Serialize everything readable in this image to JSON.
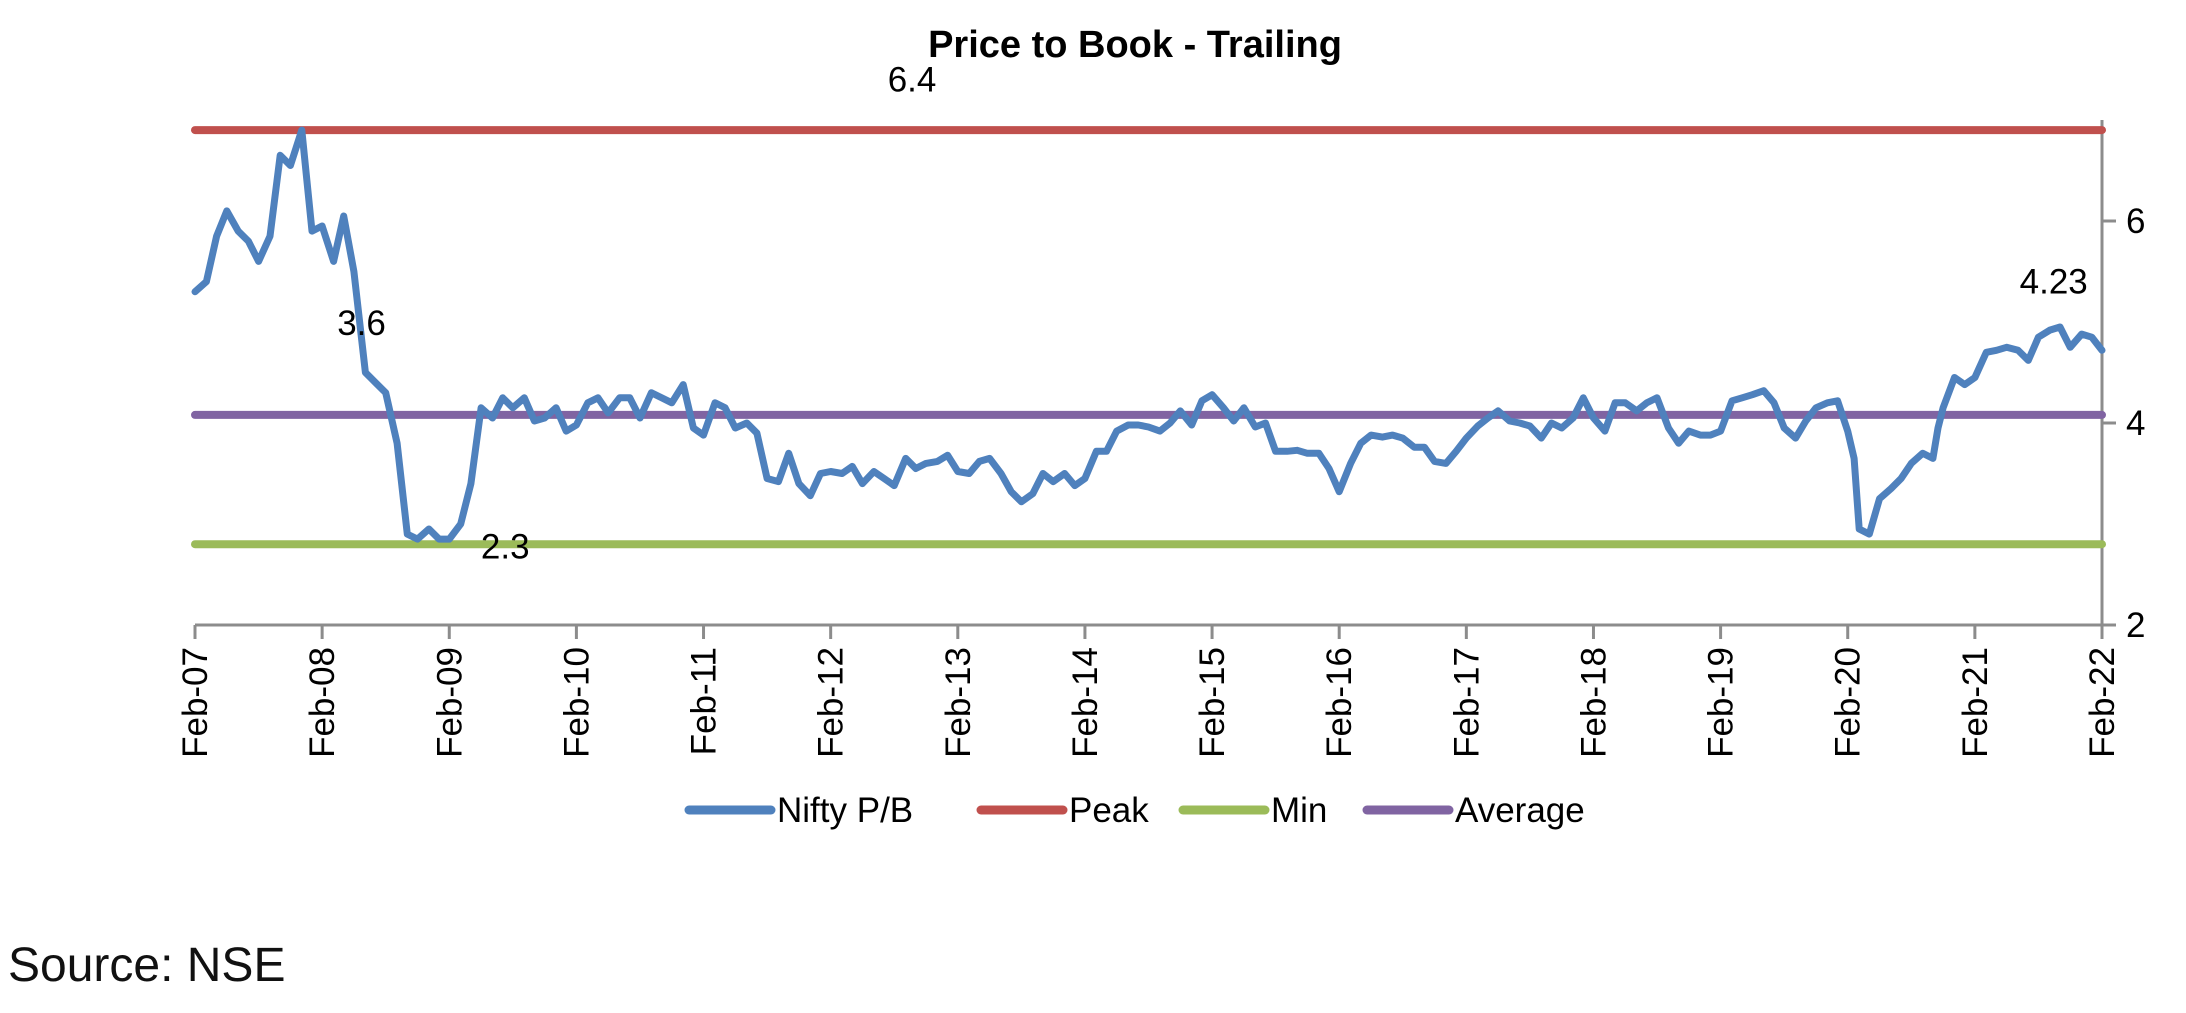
{
  "chart_data": {
    "type": "line",
    "title": "Price to Book - Trailing",
    "x_ticks": [
      "Feb-07",
      "Feb-08",
      "Feb-09",
      "Feb-10",
      "Feb-11",
      "Feb-12",
      "Feb-13",
      "Feb-14",
      "Feb-15",
      "Feb-16",
      "Feb-17",
      "Feb-18",
      "Feb-19",
      "Feb-20",
      "Feb-21",
      "Feb-22"
    ],
    "y_ticks": [
      2,
      4,
      6
    ],
    "ylim": [
      2,
      7
    ],
    "xlim": [
      2007.08,
      2022.08
    ],
    "y_axis_side": "right",
    "legend_position": "bottom",
    "series": [
      {
        "name": "Nifty P/B",
        "color": "#4F81BD",
        "x": [
          2007.08,
          2007.17,
          2007.25,
          2007.33,
          2007.42,
          2007.5,
          2007.58,
          2007.67,
          2007.75,
          2007.83,
          2007.92,
          2008.0,
          2008.08,
          2008.17,
          2008.25,
          2008.33,
          2008.42,
          2008.5,
          2008.58,
          2008.67,
          2008.75,
          2008.83,
          2008.92,
          2009.0,
          2009.08,
          2009.17,
          2009.25,
          2009.33,
          2009.42,
          2009.5,
          2009.58,
          2009.67,
          2009.75,
          2009.83,
          2009.92,
          2010.0,
          2010.08,
          2010.17,
          2010.25,
          2010.33,
          2010.42,
          2010.5,
          2010.58,
          2010.67,
          2010.75,
          2010.83,
          2010.92,
          2011.0,
          2011.08,
          2011.17,
          2011.25,
          2011.33,
          2011.42,
          2011.5,
          2011.58,
          2011.67,
          2011.75,
          2011.83,
          2011.92,
          2012.0,
          2012.08,
          2012.17,
          2012.25,
          2012.33,
          2012.42,
          2012.5,
          2012.58,
          2012.67,
          2012.75,
          2012.83,
          2012.92,
          2013.0,
          2013.08,
          2013.17,
          2013.25,
          2013.33,
          2013.42,
          2013.5,
          2013.58,
          2013.67,
          2013.75,
          2013.83,
          2013.92,
          2014.0,
          2014.08,
          2014.17,
          2014.25,
          2014.33,
          2014.42,
          2014.5,
          2014.58,
          2014.67,
          2014.75,
          2014.83,
          2014.92,
          2015.0,
          2015.08,
          2015.17,
          2015.25,
          2015.33,
          2015.42,
          2015.5,
          2015.58,
          2015.67,
          2015.75,
          2015.83,
          2015.92,
          2016.0,
          2016.08,
          2016.17,
          2016.25,
          2016.33,
          2016.42,
          2016.5,
          2016.58,
          2016.67,
          2016.75,
          2016.83,
          2016.92,
          2017.0,
          2017.08,
          2017.17,
          2017.25,
          2017.33,
          2017.42,
          2017.5,
          2017.58,
          2017.67,
          2017.75,
          2017.83,
          2017.92,
          2018.0,
          2018.08,
          2018.17,
          2018.25,
          2018.33,
          2018.42,
          2018.5,
          2018.58,
          2018.67,
          2018.75,
          2018.83,
          2018.92,
          2019.0,
          2019.08,
          2019.17,
          2019.25,
          2019.33,
          2019.42,
          2019.5,
          2019.58,
          2019.67,
          2019.75,
          2019.83,
          2019.92,
          2020.0,
          2020.08,
          2020.13,
          2020.17,
          2020.25,
          2020.33,
          2020.42,
          2020.5,
          2020.58,
          2020.67,
          2020.75,
          2020.79,
          2020.83,
          2020.92,
          2021.0,
          2021.08,
          2021.17,
          2021.25,
          2021.33,
          2021.42,
          2021.5,
          2021.58,
          2021.67,
          2021.75,
          2021.83,
          2021.92,
          2022.0,
          2022.08
        ],
        "y": [
          5.3,
          5.4,
          5.85,
          6.1,
          5.9,
          5.8,
          5.6,
          5.85,
          6.65,
          6.55,
          6.9,
          5.9,
          5.95,
          5.6,
          6.05,
          5.5,
          4.5,
          4.4,
          4.3,
          3.8,
          2.9,
          2.85,
          2.95,
          2.85,
          2.85,
          3.0,
          3.4,
          4.15,
          4.05,
          4.25,
          4.15,
          4.25,
          4.02,
          4.05,
          4.15,
          3.92,
          3.98,
          4.2,
          4.25,
          4.1,
          4.25,
          4.25,
          4.05,
          4.3,
          4.25,
          4.2,
          4.38,
          3.95,
          3.88,
          4.2,
          4.15,
          3.95,
          4.0,
          3.9,
          3.45,
          3.42,
          3.7,
          3.4,
          3.28,
          3.5,
          3.52,
          3.5,
          3.57,
          3.4,
          3.52,
          3.45,
          3.38,
          3.65,
          3.55,
          3.6,
          3.62,
          3.68,
          3.52,
          3.5,
          3.62,
          3.65,
          3.5,
          3.32,
          3.22,
          3.3,
          3.5,
          3.42,
          3.5,
          3.38,
          3.45,
          3.72,
          3.72,
          3.92,
          3.98,
          3.98,
          3.96,
          3.92,
          4.0,
          4.12,
          3.98,
          4.22,
          4.28,
          4.15,
          4.02,
          4.15,
          3.96,
          4.0,
          3.72,
          3.72,
          3.73,
          3.7,
          3.7,
          3.55,
          3.32,
          3.6,
          3.8,
          3.88,
          3.86,
          3.88,
          3.85,
          3.76,
          3.76,
          3.62,
          3.6,
          3.72,
          3.85,
          3.97,
          4.05,
          4.12,
          4.02,
          4.0,
          3.97,
          3.85,
          4.0,
          3.95,
          4.05,
          4.25,
          4.05,
          3.92,
          4.2,
          4.2,
          4.12,
          4.2,
          4.25,
          3.95,
          3.8,
          3.92,
          3.88,
          3.88,
          3.92,
          4.22,
          4.25,
          4.28,
          4.32,
          4.2,
          3.95,
          3.85,
          4.02,
          4.15,
          4.2,
          4.22,
          3.92,
          3.65,
          2.95,
          2.9,
          3.25,
          3.35,
          3.45,
          3.6,
          3.7,
          3.65,
          3.95,
          4.15,
          4.45,
          4.38,
          4.45,
          4.7,
          4.72,
          4.75,
          4.72,
          4.62,
          4.85,
          4.92,
          4.95,
          4.75,
          4.88,
          4.85,
          4.72
        ]
      },
      {
        "name": "Peak",
        "color": "#C0504D",
        "value": 6.9
      },
      {
        "name": "Min",
        "color": "#9BBB59",
        "value": 2.8
      },
      {
        "name": "Average",
        "color": "#8064A2",
        "value": 4.08
      }
    ],
    "annotations": [
      {
        "text": "6.4",
        "x": 2012.72,
        "y": 7.28
      },
      {
        "text": "3.6",
        "x": 2008.39,
        "y": 4.87
      },
      {
        "text": "2.3",
        "x": 2009.52,
        "y": 2.66
      },
      {
        "text": "4.23",
        "x": 2021.7,
        "y": 5.28
      }
    ]
  },
  "footer": {
    "source": "Source: NSE"
  }
}
